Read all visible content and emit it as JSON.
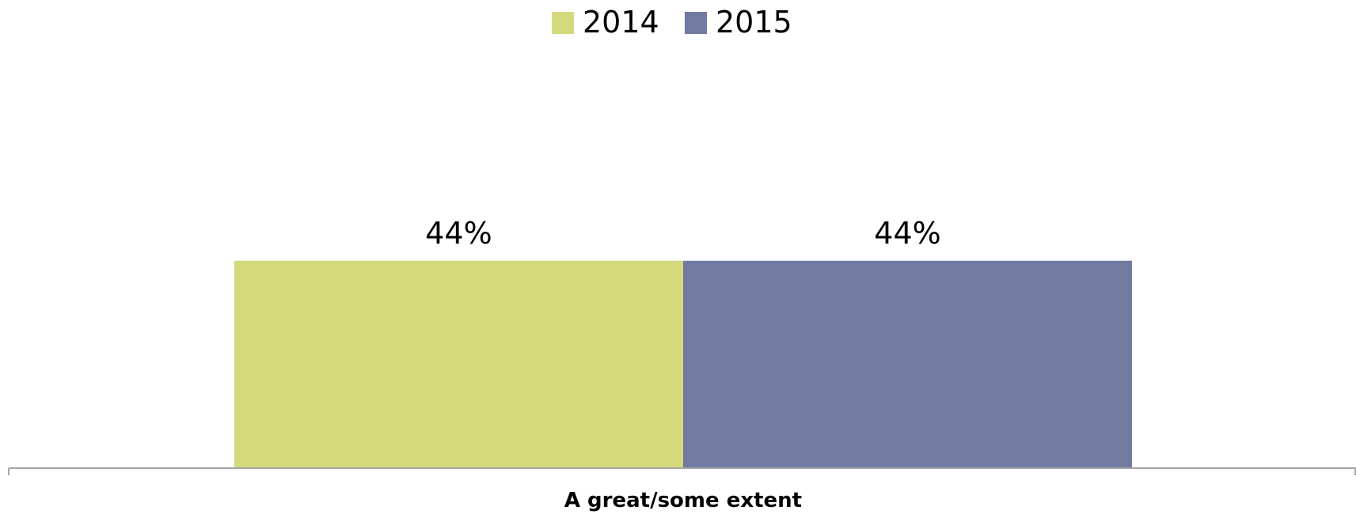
{
  "chart_data": {
    "type": "bar",
    "categories": [
      "A great/some extent"
    ],
    "series": [
      {
        "name": "2014",
        "values": [
          44
        ],
        "color": "#d4da7c",
        "label": "44%"
      },
      {
        "name": "2015",
        "values": [
          44
        ],
        "color": "#717aa1",
        "label": "44%"
      }
    ],
    "ylim": [
      0,
      53.9
    ],
    "grid": false,
    "legend_position": "top-center",
    "axis_color": "#a6a6a6",
    "text_color": "#000000"
  }
}
